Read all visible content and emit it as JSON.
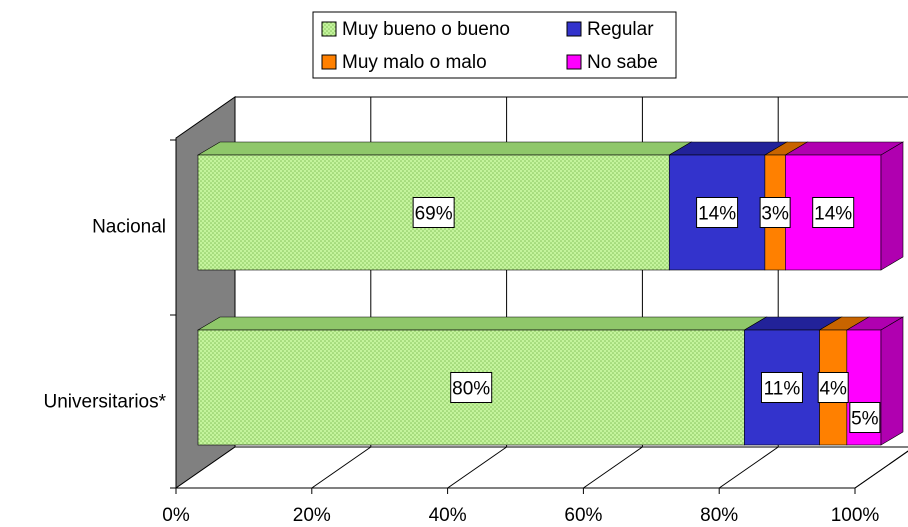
{
  "chart_data": {
    "type": "bar",
    "orientation": "horizontal",
    "stacked": "percent",
    "three_d": true,
    "categories": [
      "Nacional",
      "Universitarios*"
    ],
    "series": [
      {
        "name": "Muy bueno o bueno",
        "values": [
          69,
          80
        ],
        "color": "#b8f08c",
        "shade": "#8fc76a",
        "pattern": "dotted"
      },
      {
        "name": "Regular",
        "values": [
          14,
          11
        ],
        "color": "#3333cc",
        "shade": "#222299"
      },
      {
        "name": "Muy malo o malo",
        "values": [
          3,
          4
        ],
        "color": "#ff8000",
        "shade": "#c86400"
      },
      {
        "name": "No sabe",
        "values": [
          14,
          5
        ],
        "color": "#ff00ff",
        "shade": "#b000b0"
      }
    ],
    "data_labels": [
      [
        "69%",
        "14%",
        "3%",
        "14%"
      ],
      [
        "80%",
        "11%",
        "4%",
        "5%"
      ]
    ],
    "x_ticks": [
      "0%",
      "20%",
      "40%",
      "60%",
      "80%",
      "100%"
    ],
    "xlim": [
      0,
      100
    ],
    "grid": true,
    "legend_position": "top",
    "title": "",
    "xlabel": "",
    "ylabel": ""
  }
}
